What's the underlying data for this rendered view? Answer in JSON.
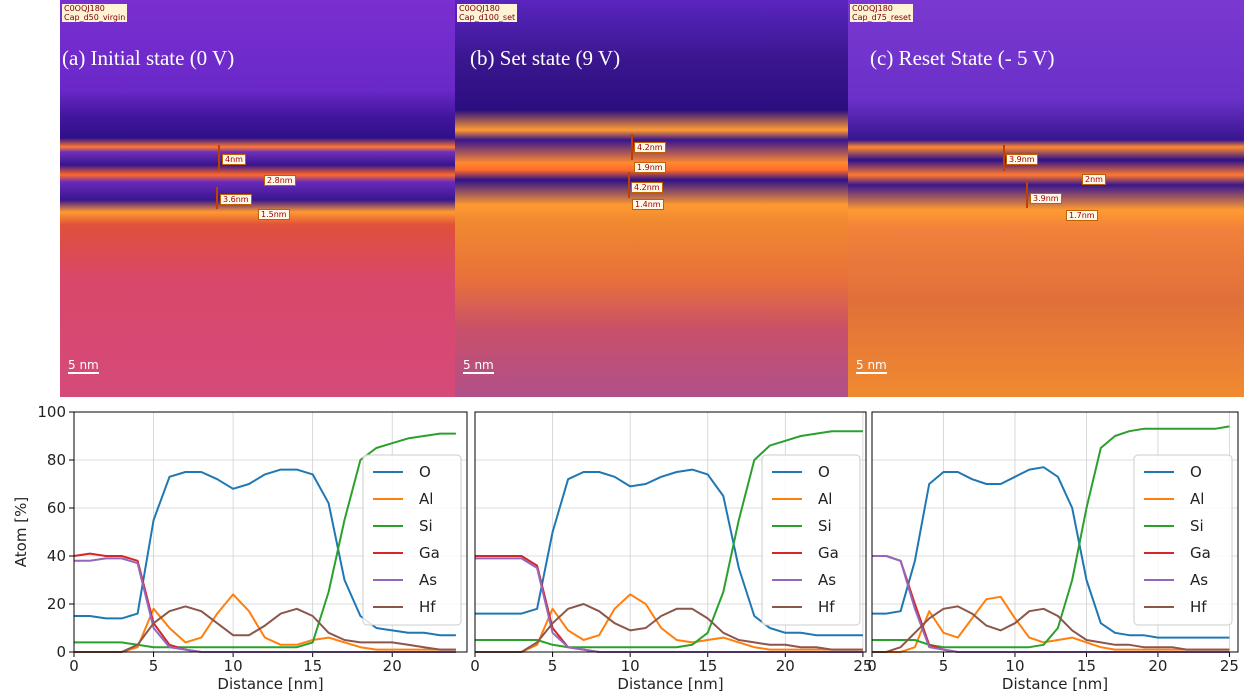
{
  "images": [
    {
      "tag": [
        "C0OQJ180",
        "Cap_d50_virgin"
      ],
      "caption": "(a) Initial state (0 V)",
      "measurements": [
        "4nm",
        "2.8nm",
        "3.6nm",
        "1.5nm"
      ],
      "scale_bar": "5 nm"
    },
    {
      "tag": [
        "C0OQJ180",
        "Cap_d100_set"
      ],
      "caption": "(b) Set state (9 V)",
      "measurements": [
        "4.2nm",
        "1.9nm",
        "4.2nm",
        "1.4nm"
      ],
      "scale_bar": "5 nm"
    },
    {
      "tag": [
        "C0OQJ180",
        "Cap_d75_reset"
      ],
      "caption": "(c) Reset State (- 5 V)",
      "measurements": [
        "3.9nm",
        "2nm",
        "3.9nm",
        "1.7nm"
      ],
      "scale_bar": "5 nm"
    }
  ],
  "chart_data": [
    {
      "type": "line",
      "xlabel": "Distance [nm]",
      "ylabel": "Atom [%]",
      "xlim": [
        0,
        24.7
      ],
      "ylim": [
        0,
        100
      ],
      "xticks": [
        0,
        5,
        10,
        15,
        20
      ],
      "yticks": [
        0,
        20,
        40,
        60,
        80,
        100
      ],
      "show_ytick_labels": true,
      "grid": true,
      "legend": "center right",
      "x": [
        0,
        1,
        2,
        3,
        4,
        5,
        6,
        7,
        8,
        9,
        10,
        11,
        12,
        13,
        14,
        15,
        16,
        17,
        18,
        19,
        20,
        21,
        22,
        23,
        24
      ],
      "series": [
        {
          "name": "O",
          "color": "#1f77b4",
          "values": [
            15,
            15,
            14,
            14,
            16,
            55,
            73,
            75,
            75,
            72,
            68,
            70,
            74,
            76,
            76,
            74,
            62,
            30,
            15,
            10,
            9,
            8,
            8,
            7,
            7
          ]
        },
        {
          "name": "Al",
          "color": "#ff7f0e",
          "values": [
            0,
            0,
            0,
            0,
            2,
            18,
            10,
            4,
            6,
            16,
            24,
            17,
            6,
            3,
            3,
            5,
            6,
            4,
            2,
            1,
            1,
            1,
            1,
            1,
            1
          ]
        },
        {
          "name": "Si",
          "color": "#2ca02c",
          "values": [
            4,
            4,
            4,
            4,
            3,
            2,
            2,
            2,
            2,
            2,
            2,
            2,
            2,
            2,
            2,
            4,
            25,
            55,
            80,
            85,
            87,
            89,
            90,
            91,
            91
          ]
        },
        {
          "name": "Ga",
          "color": "#d62728",
          "values": [
            40,
            41,
            40,
            40,
            38,
            12,
            3,
            1,
            0,
            0,
            0,
            0,
            0,
            0,
            0,
            0,
            0,
            0,
            0,
            0,
            0,
            0,
            0,
            0,
            0
          ]
        },
        {
          "name": "As",
          "color": "#9467bd",
          "values": [
            38,
            38,
            39,
            39,
            37,
            10,
            2,
            1,
            0,
            0,
            0,
            0,
            0,
            0,
            0,
            0,
            0,
            0,
            0,
            0,
            0,
            0,
            0,
            0,
            0
          ]
        },
        {
          "name": "Hf",
          "color": "#8c564b",
          "values": [
            0,
            0,
            0,
            0,
            3,
            12,
            17,
            19,
            17,
            12,
            7,
            7,
            11,
            16,
            18,
            15,
            8,
            5,
            4,
            4,
            4,
            3,
            2,
            1,
            1
          ]
        }
      ]
    },
    {
      "type": "line",
      "xlabel": "Distance [nm]",
      "xlim": [
        0,
        25.2
      ],
      "ylim": [
        0,
        100
      ],
      "xticks": [
        0,
        5,
        10,
        15,
        20,
        25
      ],
      "yticks": [
        0,
        20,
        40,
        60,
        80,
        100
      ],
      "show_ytick_labels": false,
      "grid": true,
      "legend": "center right",
      "x": [
        0,
        1,
        2,
        3,
        4,
        5,
        6,
        7,
        8,
        9,
        10,
        11,
        12,
        13,
        14,
        15,
        16,
        17,
        18,
        19,
        20,
        21,
        22,
        23,
        24,
        25
      ],
      "series": [
        {
          "name": "O",
          "color": "#1f77b4",
          "values": [
            16,
            16,
            16,
            16,
            18,
            50,
            72,
            75,
            75,
            73,
            69,
            70,
            73,
            75,
            76,
            74,
            65,
            35,
            15,
            10,
            8,
            8,
            7,
            7,
            7,
            7
          ]
        },
        {
          "name": "Al",
          "color": "#ff7f0e",
          "values": [
            0,
            0,
            0,
            0,
            3,
            18,
            9,
            5,
            7,
            18,
            24,
            20,
            10,
            5,
            4,
            5,
            6,
            4,
            2,
            1,
            1,
            1,
            1,
            1,
            1,
            1
          ]
        },
        {
          "name": "Si",
          "color": "#2ca02c",
          "values": [
            5,
            5,
            5,
            5,
            5,
            3,
            2,
            2,
            2,
            2,
            2,
            2,
            2,
            2,
            3,
            8,
            25,
            55,
            80,
            86,
            88,
            90,
            91,
            92,
            92,
            92
          ]
        },
        {
          "name": "Ga",
          "color": "#d62728",
          "values": [
            40,
            40,
            40,
            40,
            36,
            10,
            2,
            1,
            0,
            0,
            0,
            0,
            0,
            0,
            0,
            0,
            0,
            0,
            0,
            0,
            0,
            0,
            0,
            0,
            0,
            0
          ]
        },
        {
          "name": "As",
          "color": "#9467bd",
          "values": [
            39,
            39,
            39,
            39,
            35,
            8,
            2,
            1,
            0,
            0,
            0,
            0,
            0,
            0,
            0,
            0,
            0,
            0,
            0,
            0,
            0,
            0,
            0,
            0,
            0,
            0
          ]
        },
        {
          "name": "Hf",
          "color": "#8c564b",
          "values": [
            0,
            0,
            0,
            0,
            4,
            12,
            18,
            20,
            17,
            12,
            9,
            10,
            15,
            18,
            18,
            14,
            8,
            5,
            4,
            3,
            3,
            2,
            2,
            1,
            1,
            1
          ]
        }
      ]
    },
    {
      "type": "line",
      "xlabel": "Distance [nm]",
      "xlim": [
        0,
        25.6
      ],
      "ylim": [
        0,
        100
      ],
      "xticks": [
        0,
        5,
        10,
        15,
        20,
        25
      ],
      "yticks": [
        0,
        20,
        40,
        60,
        80,
        100
      ],
      "show_ytick_labels": false,
      "grid": true,
      "legend": "center right",
      "x": [
        0,
        1,
        2,
        3,
        4,
        5,
        6,
        7,
        8,
        9,
        10,
        11,
        12,
        13,
        14,
        15,
        16,
        17,
        18,
        19,
        20,
        21,
        22,
        23,
        24,
        25
      ],
      "series": [
        {
          "name": "O",
          "color": "#1f77b4",
          "values": [
            16,
            16,
            17,
            38,
            70,
            75,
            75,
            72,
            70,
            70,
            73,
            76,
            77,
            73,
            60,
            30,
            12,
            8,
            7,
            7,
            6,
            6,
            6,
            6,
            6,
            6
          ]
        },
        {
          "name": "Al",
          "color": "#ff7f0e",
          "values": [
            0,
            0,
            0,
            2,
            17,
            8,
            6,
            14,
            22,
            23,
            14,
            6,
            4,
            5,
            6,
            4,
            2,
            1,
            1,
            1,
            1,
            1,
            1,
            1,
            1,
            1
          ]
        },
        {
          "name": "Si",
          "color": "#2ca02c",
          "values": [
            5,
            5,
            5,
            5,
            3,
            2,
            2,
            2,
            2,
            2,
            2,
            2,
            3,
            10,
            30,
            60,
            85,
            90,
            92,
            93,
            93,
            93,
            93,
            93,
            93,
            94
          ]
        },
        {
          "name": "Ga",
          "color": "#d62728",
          "values": [
            40,
            40,
            38,
            20,
            3,
            1,
            0,
            0,
            0,
            0,
            0,
            0,
            0,
            0,
            0,
            0,
            0,
            0,
            0,
            0,
            0,
            0,
            0,
            0,
            0,
            0
          ]
        },
        {
          "name": "As",
          "color": "#9467bd",
          "values": [
            40,
            40,
            38,
            18,
            2,
            1,
            0,
            0,
            0,
            0,
            0,
            0,
            0,
            0,
            0,
            0,
            0,
            0,
            0,
            0,
            0,
            0,
            0,
            0,
            0,
            0
          ]
        },
        {
          "name": "Hf",
          "color": "#8c564b",
          "values": [
            0,
            0,
            2,
            8,
            14,
            18,
            19,
            16,
            11,
            9,
            12,
            17,
            18,
            15,
            9,
            5,
            4,
            3,
            3,
            2,
            2,
            2,
            1,
            1,
            1,
            1
          ]
        }
      ]
    }
  ]
}
